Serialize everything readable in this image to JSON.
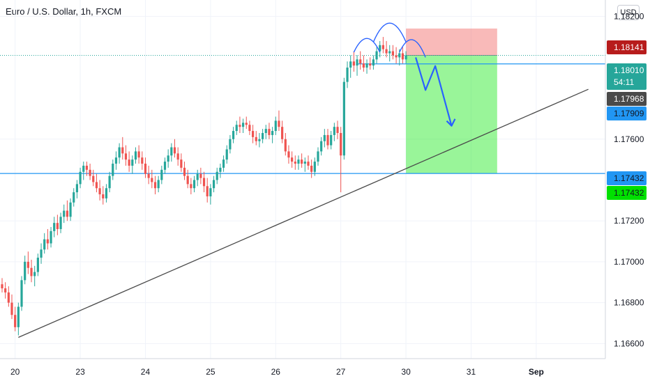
{
  "header": {
    "title": "Euro / U.S. Dollar, 1h, FXCM",
    "currency_button": "USD"
  },
  "chart_data": {
    "type": "candlestick",
    "symbol": "Euro / U.S. Dollar",
    "interval": "1h",
    "source": "FXCM",
    "ylim": [
      1.1655,
      1.1825
    ],
    "y_ticks": [
      "1.18200",
      "1.17600",
      "1.17200",
      "1.17000",
      "1.16800",
      "1.16600"
    ],
    "x_ticks": [
      {
        "label": "20",
        "slot": 4
      },
      {
        "label": "23",
        "slot": 24
      },
      {
        "label": "24",
        "slot": 44
      },
      {
        "label": "25",
        "slot": 64
      },
      {
        "label": "26",
        "slot": 84
      },
      {
        "label": "27",
        "slot": 104
      },
      {
        "label": "30",
        "slot": 124
      },
      {
        "label": "31",
        "slot": 144
      },
      {
        "label": "Sep",
        "slot": 164
      }
    ],
    "grid": true,
    "colors": {
      "up": "#26a69a",
      "down": "#ef5350",
      "blue": "#2962ff",
      "trendline": "#4a4a4a",
      "level": "#2196f3"
    },
    "price_tags": [
      {
        "label": "1.18141",
        "value": 1.18141,
        "bg": "#b71c1c",
        "fg": "#ffffff"
      },
      {
        "label": "1.18010",
        "sub": "54:11",
        "value": 1.1801,
        "bg": "#26a69a",
        "fg": "#ffffff"
      },
      {
        "label": "1.17968",
        "value": 1.17968,
        "bg": "#4a4a4a",
        "fg": "#ffffff"
      },
      {
        "label": "1.17909",
        "value": 1.17909,
        "bg": "#2196f3",
        "fg": "#131722"
      },
      {
        "label": "1.17432",
        "value": 1.17432,
        "bg": "#2196f3",
        "fg": "#131722"
      },
      {
        "label": "1.17432",
        "value": 1.17432,
        "bg": "#00e000",
        "fg": "#131722"
      }
    ],
    "horizontal_levels": [
      1.17968,
      1.17432
    ],
    "current_price": 1.1801,
    "position": {
      "entry": 1.1801,
      "stop": 1.18141,
      "target": 1.17432,
      "start_slot": 124,
      "end_slot": 152
    },
    "trendline": {
      "from": {
        "slot": 5,
        "price": 1.1663
      },
      "to": {
        "slot": 180,
        "price": 1.17844
      }
    },
    "candles": [
      [
        1.1689,
        1.1692,
        1.1685,
        1.1687
      ],
      [
        1.1687,
        1.169,
        1.1682,
        1.1685
      ],
      [
        1.1685,
        1.1688,
        1.1678,
        1.168
      ],
      [
        1.168,
        1.1684,
        1.1672,
        1.1674
      ],
      [
        1.1674,
        1.1678,
        1.1666,
        1.1668
      ],
      [
        1.1668,
        1.168,
        1.1664,
        1.1678
      ],
      [
        1.1678,
        1.1693,
        1.1676,
        1.1691
      ],
      [
        1.1691,
        1.1703,
        1.1689,
        1.17
      ],
      [
        1.17,
        1.1705,
        1.1694,
        1.1697
      ],
      [
        1.1697,
        1.1701,
        1.169,
        1.1693
      ],
      [
        1.1693,
        1.1698,
        1.1688,
        1.1695
      ],
      [
        1.1695,
        1.1704,
        1.1693,
        1.1702
      ],
      [
        1.1702,
        1.1709,
        1.1699,
        1.1706
      ],
      [
        1.1706,
        1.1714,
        1.1704,
        1.1711
      ],
      [
        1.1711,
        1.1716,
        1.1706,
        1.1709
      ],
      [
        1.1709,
        1.1717,
        1.1707,
        1.1715
      ],
      [
        1.1715,
        1.1722,
        1.1712,
        1.1719
      ],
      [
        1.1719,
        1.1723,
        1.1713,
        1.1716
      ],
      [
        1.1716,
        1.1724,
        1.1714,
        1.1722
      ],
      [
        1.1722,
        1.1728,
        1.1719,
        1.1725
      ],
      [
        1.1725,
        1.173,
        1.172,
        1.1722
      ],
      [
        1.1722,
        1.1731,
        1.172,
        1.1729
      ],
      [
        1.1729,
        1.1736,
        1.1727,
        1.1734
      ],
      [
        1.1734,
        1.174,
        1.1731,
        1.1738
      ],
      [
        1.1738,
        1.1746,
        1.1736,
        1.1744
      ],
      [
        1.1744,
        1.1749,
        1.174,
        1.1747
      ],
      [
        1.1747,
        1.1749,
        1.1742,
        1.1745
      ],
      [
        1.1745,
        1.1748,
        1.174,
        1.1742
      ],
      [
        1.1742,
        1.1745,
        1.1737,
        1.1739
      ],
      [
        1.1739,
        1.1743,
        1.1734,
        1.1736
      ],
      [
        1.1736,
        1.174,
        1.173,
        1.1733
      ],
      [
        1.1733,
        1.1737,
        1.1728,
        1.1731
      ],
      [
        1.1731,
        1.1738,
        1.1729,
        1.1736
      ],
      [
        1.1736,
        1.1744,
        1.1734,
        1.1742
      ],
      [
        1.1742,
        1.175,
        1.174,
        1.1748
      ],
      [
        1.1748,
        1.1754,
        1.1745,
        1.1751
      ],
      [
        1.1751,
        1.1758,
        1.1748,
        1.1756
      ],
      [
        1.1756,
        1.1761,
        1.175,
        1.1753
      ],
      [
        1.1753,
        1.1757,
        1.1747,
        1.175
      ],
      [
        1.175,
        1.1754,
        1.1744,
        1.1747
      ],
      [
        1.1747,
        1.1752,
        1.1743,
        1.175
      ],
      [
        1.175,
        1.1756,
        1.1748,
        1.1754
      ],
      [
        1.1754,
        1.1757,
        1.1748,
        1.1751
      ],
      [
        1.1751,
        1.1754,
        1.1745,
        1.1748
      ],
      [
        1.1748,
        1.1751,
        1.1741,
        1.1743
      ],
      [
        1.1743,
        1.1747,
        1.1738,
        1.1741
      ],
      [
        1.1741,
        1.1745,
        1.1736,
        1.1739
      ],
      [
        1.1739,
        1.1742,
        1.1733,
        1.1736
      ],
      [
        1.1736,
        1.1742,
        1.1734,
        1.174
      ],
      [
        1.174,
        1.1747,
        1.1738,
        1.1745
      ],
      [
        1.1745,
        1.1751,
        1.1743,
        1.1749
      ],
      [
        1.1749,
        1.1755,
        1.1746,
        1.1752
      ],
      [
        1.1752,
        1.1758,
        1.1749,
        1.1756
      ],
      [
        1.1756,
        1.176,
        1.1751,
        1.1753
      ],
      [
        1.1753,
        1.1756,
        1.1747,
        1.175
      ],
      [
        1.175,
        1.1753,
        1.1744,
        1.1746
      ],
      [
        1.1746,
        1.1749,
        1.174,
        1.1742
      ],
      [
        1.1742,
        1.1745,
        1.1736,
        1.1738
      ],
      [
        1.1738,
        1.1741,
        1.1733,
        1.1736
      ],
      [
        1.1736,
        1.1742,
        1.1734,
        1.174
      ],
      [
        1.174,
        1.1745,
        1.1737,
        1.1743
      ],
      [
        1.1743,
        1.1746,
        1.1738,
        1.1741
      ],
      [
        1.1741,
        1.1744,
        1.1734,
        1.1737
      ],
      [
        1.1737,
        1.1741,
        1.1729,
        1.1732
      ],
      [
        1.1732,
        1.1738,
        1.1728,
        1.1736
      ],
      [
        1.1736,
        1.1742,
        1.1734,
        1.174
      ],
      [
        1.174,
        1.1746,
        1.1738,
        1.1744
      ],
      [
        1.1744,
        1.1748,
        1.1741,
        1.1746
      ],
      [
        1.1746,
        1.1752,
        1.1744,
        1.175
      ],
      [
        1.175,
        1.1757,
        1.1748,
        1.1755
      ],
      [
        1.1755,
        1.1762,
        1.1753,
        1.176
      ],
      [
        1.176,
        1.1766,
        1.1758,
        1.1764
      ],
      [
        1.1764,
        1.1769,
        1.1762,
        1.1767
      ],
      [
        1.1767,
        1.1771,
        1.1763,
        1.1766
      ],
      [
        1.1766,
        1.177,
        1.1763,
        1.1768
      ],
      [
        1.1768,
        1.1771,
        1.1765,
        1.1767
      ],
      [
        1.1767,
        1.1769,
        1.1762,
        1.1764
      ],
      [
        1.1764,
        1.1767,
        1.1758,
        1.1761
      ],
      [
        1.1761,
        1.1764,
        1.1757,
        1.1759
      ],
      [
        1.1759,
        1.1763,
        1.1756,
        1.176
      ],
      [
        1.176,
        1.1765,
        1.1758,
        1.1763
      ],
      [
        1.1763,
        1.1767,
        1.176,
        1.1765
      ],
      [
        1.1765,
        1.1768,
        1.176,
        1.1762
      ],
      [
        1.1762,
        1.1766,
        1.1758,
        1.1764
      ],
      [
        1.1764,
        1.1771,
        1.1762,
        1.1769
      ],
      [
        1.1769,
        1.1774,
        1.1764,
        1.1766
      ],
      [
        1.1766,
        1.1769,
        1.1758,
        1.176
      ],
      [
        1.176,
        1.1763,
        1.1752,
        1.1754
      ],
      [
        1.1754,
        1.1757,
        1.1748,
        1.1751
      ],
      [
        1.1751,
        1.1754,
        1.1746,
        1.1749
      ],
      [
        1.1749,
        1.1752,
        1.1745,
        1.1748
      ],
      [
        1.1748,
        1.1752,
        1.1745,
        1.175
      ],
      [
        1.175,
        1.1753,
        1.1746,
        1.1748
      ],
      [
        1.1748,
        1.1751,
        1.1744,
        1.1749
      ],
      [
        1.1749,
        1.1752,
        1.1745,
        1.1747
      ],
      [
        1.1747,
        1.175,
        1.1741,
        1.1744
      ],
      [
        1.1744,
        1.1751,
        1.1742,
        1.1749
      ],
      [
        1.1749,
        1.1756,
        1.1747,
        1.1754
      ],
      [
        1.1754,
        1.1761,
        1.1752,
        1.1759
      ],
      [
        1.1759,
        1.1765,
        1.1756,
        1.1762
      ],
      [
        1.1762,
        1.1765,
        1.1755,
        1.1757
      ],
      [
        1.1757,
        1.1764,
        1.1755,
        1.1762
      ],
      [
        1.1762,
        1.1768,
        1.1759,
        1.1766
      ],
      [
        1.1766,
        1.1769,
        1.176,
        1.1763
      ],
      [
        1.1763,
        1.1766,
        1.1734,
        1.1752
      ],
      [
        1.1752,
        1.179,
        1.175,
        1.1788
      ],
      [
        1.1788,
        1.1798,
        1.1785,
        1.1795
      ],
      [
        1.1795,
        1.1801,
        1.179,
        1.1798
      ],
      [
        1.1798,
        1.1803,
        1.1793,
        1.1796
      ],
      [
        1.1796,
        1.1801,
        1.1791,
        1.1799
      ],
      [
        1.1799,
        1.1803,
        1.1794,
        1.1797
      ],
      [
        1.1797,
        1.1801,
        1.1793,
        1.1795
      ],
      [
        1.1795,
        1.1799,
        1.1792,
        1.1797
      ],
      [
        1.1797,
        1.18,
        1.1794,
        1.1796
      ],
      [
        1.1796,
        1.1801,
        1.1794,
        1.1799
      ],
      [
        1.1799,
        1.1805,
        1.1797,
        1.1803
      ],
      [
        1.1803,
        1.1808,
        1.18,
        1.1806
      ],
      [
        1.1806,
        1.181,
        1.1802,
        1.1804
      ],
      [
        1.1804,
        1.1808,
        1.18,
        1.1802
      ],
      [
        1.1802,
        1.1806,
        1.1798,
        1.1803
      ],
      [
        1.1803,
        1.1806,
        1.1799,
        1.1801
      ],
      [
        1.1801,
        1.1805,
        1.1797,
        1.18
      ],
      [
        1.18,
        1.1804,
        1.1796,
        1.1802
      ],
      [
        1.1802,
        1.1805,
        1.1797,
        1.1799
      ],
      [
        1.1799,
        1.1803,
        1.1797,
        1.1801
      ]
    ]
  }
}
